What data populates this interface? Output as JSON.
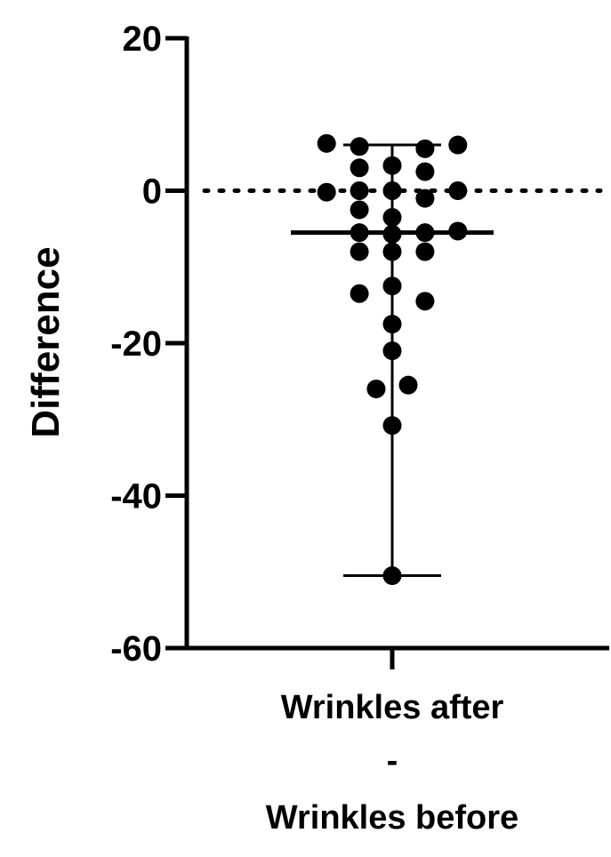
{
  "chart_data": {
    "type": "scatter",
    "ylabel": "Difference",
    "ylim": [
      -60,
      20
    ],
    "yticks": [
      20,
      0,
      -20,
      -40,
      -60
    ],
    "ytick_labels": [
      "20",
      "0",
      "-20",
      "-40",
      "-60"
    ],
    "category_lines": [
      "Wrinkles after",
      "-",
      "Wrinkles before"
    ],
    "reference_line": 0,
    "summary": {
      "median": -5.5,
      "max": 6,
      "min": -50.5
    },
    "points": [
      {
        "x": -0.9,
        "y": 6.2
      },
      {
        "x": -0.45,
        "y": 5.8
      },
      {
        "x": 0.45,
        "y": 5.5
      },
      {
        "x": 0.9,
        "y": 6
      },
      {
        "x": -0.45,
        "y": 3
      },
      {
        "x": 0,
        "y": 3.3
      },
      {
        "x": 0.45,
        "y": 2.5
      },
      {
        "x": -0.9,
        "y": -0.2
      },
      {
        "x": -0.45,
        "y": 0
      },
      {
        "x": 0,
        "y": 0
      },
      {
        "x": 0.45,
        "y": -1
      },
      {
        "x": 0.9,
        "y": 0
      },
      {
        "x": -0.45,
        "y": -2.5
      },
      {
        "x": 0,
        "y": -3.5
      },
      {
        "x": -0.45,
        "y": -5.5
      },
      {
        "x": 0,
        "y": -5.7
      },
      {
        "x": 0.45,
        "y": -5.5
      },
      {
        "x": 0.9,
        "y": -5.3
      },
      {
        "x": -0.45,
        "y": -8
      },
      {
        "x": 0,
        "y": -8
      },
      {
        "x": 0.45,
        "y": -8
      },
      {
        "x": -0.45,
        "y": -13.5
      },
      {
        "x": 0,
        "y": -12.5
      },
      {
        "x": 0.45,
        "y": -14.5
      },
      {
        "x": 0,
        "y": -17.5
      },
      {
        "x": 0,
        "y": -21
      },
      {
        "x": -0.22,
        "y": -26
      },
      {
        "x": 0.22,
        "y": -25.5
      },
      {
        "x": 0,
        "y": -30.8
      },
      {
        "x": 0,
        "y": -50.5
      }
    ]
  }
}
